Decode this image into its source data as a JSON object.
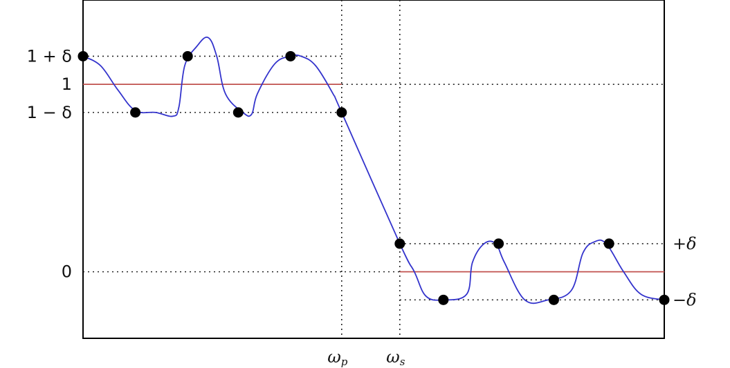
{
  "chart_data": {
    "type": "line",
    "title": "",
    "xlabel": "",
    "ylabel": "",
    "xlim": [
      0,
      1
    ],
    "ylim": [
      -0.355,
      1.45
    ],
    "grid": false,
    "legend": "none",
    "params": {
      "delta": 0.15,
      "omega_p": 0.445,
      "omega_s": 0.545
    },
    "y_ticks": [
      {
        "value": 1.15,
        "label": "1 + δ"
      },
      {
        "value": 1.0,
        "label": "1"
      },
      {
        "value": 0.85,
        "label": "1 − δ"
      },
      {
        "value": 0.0,
        "label": "0"
      }
    ],
    "right_labels": [
      {
        "value": 0.15,
        "label": "+δ"
      },
      {
        "value": -0.15,
        "label": "−δ"
      }
    ],
    "x_ticks": [
      {
        "value": 0.445,
        "label": "ω",
        "sub": "p"
      },
      {
        "value": 0.545,
        "label": "ω",
        "sub": "s"
      }
    ],
    "guides": {
      "horizontal": [
        {
          "y": 1.15,
          "x0": 0,
          "x1": 0.445
        },
        {
          "y": 1.0,
          "x0": 0.445,
          "x1": 1
        },
        {
          "y": 0.85,
          "x0": 0,
          "x1": 0.445
        },
        {
          "y": 0.0,
          "x0": 0,
          "x1": 0.545
        },
        {
          "y": 0.15,
          "x0": 0.545,
          "x1": 1
        },
        {
          "y": -0.15,
          "x0": 0.545,
          "x1": 1
        }
      ],
      "vertical": [
        0.445,
        0.545
      ]
    },
    "series": [
      {
        "role": "ideal",
        "color": "#c0504d",
        "segments": [
          {
            "x": [
              0,
              0.445
            ],
            "y": [
              1.0,
              1.0
            ]
          },
          {
            "x": [
              0.545,
              1
            ],
            "y": [
              0.0,
              0.0
            ]
          }
        ]
      },
      {
        "role": "response",
        "color": "#3333cc",
        "x": [
          0,
          0.03,
          0.06,
          0.09,
          0.125,
          0.155,
          0.165,
          0.175,
          0.195,
          0.215,
          0.23,
          0.245,
          0.275,
          0.29,
          0.3,
          0.33,
          0.357,
          0.375,
          0.4,
          0.43,
          0.445,
          0.545,
          0.57,
          0.59,
          0.62,
          0.66,
          0.67,
          0.69,
          0.71,
          0.725,
          0.76,
          0.8,
          0.84,
          0.86,
          0.88,
          0.9,
          0.93,
          0.96,
          1.0
        ],
        "y": [
          1.15,
          1.1,
          0.97,
          0.86,
          0.85,
          0.83,
          0.88,
          1.1,
          1.2,
          1.25,
          1.15,
          0.95,
          0.85,
          0.84,
          0.95,
          1.11,
          1.15,
          1.15,
          1.1,
          0.95,
          0.85,
          0.15,
          0.0,
          -0.13,
          -0.15,
          -0.12,
          0.05,
          0.15,
          0.15,
          0.05,
          -0.15,
          -0.15,
          -0.1,
          0.1,
          0.16,
          0.15,
          0.0,
          -0.12,
          -0.15
        ]
      }
    ],
    "extremal_points": [
      {
        "x": 0,
        "y": 1.15
      },
      {
        "x": 0.09,
        "y": 0.85
      },
      {
        "x": 0.18,
        "y": 1.15
      },
      {
        "x": 0.267,
        "y": 0.85
      },
      {
        "x": 0.357,
        "y": 1.15
      },
      {
        "x": 0.445,
        "y": 0.85
      },
      {
        "x": 0.545,
        "y": 0.15
      },
      {
        "x": 0.62,
        "y": -0.15
      },
      {
        "x": 0.715,
        "y": 0.15
      },
      {
        "x": 0.81,
        "y": -0.15
      },
      {
        "x": 0.905,
        "y": 0.15
      },
      {
        "x": 1.0,
        "y": -0.15
      }
    ]
  }
}
